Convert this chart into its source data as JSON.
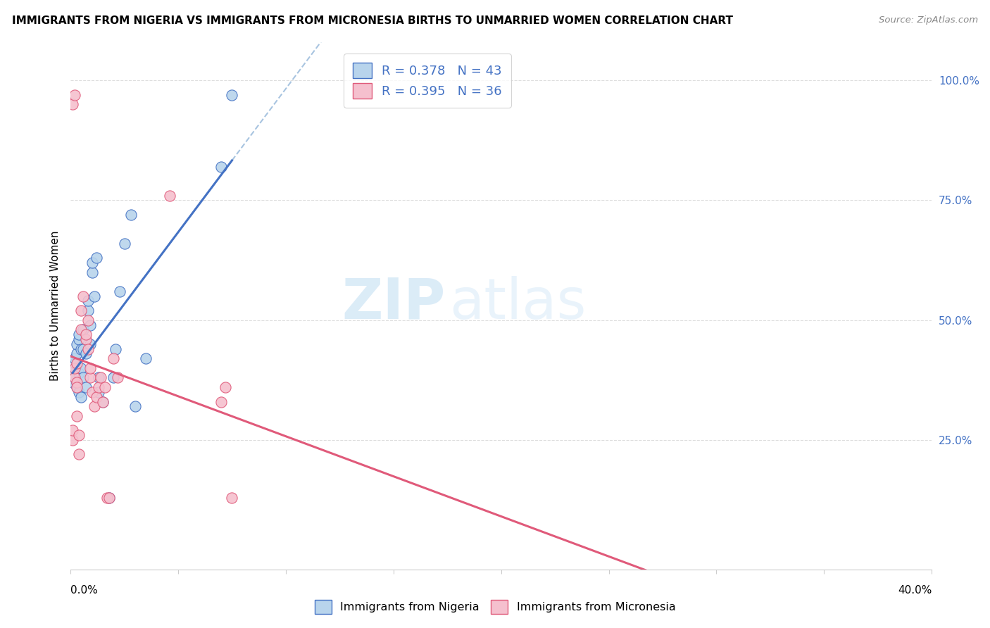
{
  "title": "IMMIGRANTS FROM NIGERIA VS IMMIGRANTS FROM MICRONESIA BIRTHS TO UNMARRIED WOMEN CORRELATION CHART",
  "source": "Source: ZipAtlas.com",
  "ylabel": "Births to Unmarried Women",
  "ytick_values": [
    0.25,
    0.5,
    0.75,
    1.0
  ],
  "xlim": [
    0.0,
    0.4
  ],
  "ylim": [
    -0.02,
    1.08
  ],
  "nigeria_R": 0.378,
  "nigeria_N": 43,
  "micronesia_R": 0.395,
  "micronesia_N": 36,
  "legend_label_1": "Immigrants from Nigeria",
  "legend_label_2": "Immigrants from Micronesia",
  "blue_fill": "#b8d4ec",
  "pink_fill": "#f5c0ce",
  "blue_line_color": "#4472c4",
  "pink_line_color": "#e05a7a",
  "blue_dashed_color": "#a8c4e0",
  "nigeria_x": [
    0.001,
    0.001,
    0.002,
    0.002,
    0.002,
    0.002,
    0.003,
    0.003,
    0.003,
    0.003,
    0.004,
    0.004,
    0.004,
    0.004,
    0.005,
    0.005,
    0.005,
    0.006,
    0.006,
    0.006,
    0.007,
    0.007,
    0.008,
    0.008,
    0.009,
    0.009,
    0.01,
    0.01,
    0.011,
    0.012,
    0.013,
    0.013,
    0.015,
    0.018,
    0.02,
    0.021,
    0.023,
    0.025,
    0.028,
    0.03,
    0.035,
    0.07,
    0.075
  ],
  "nigeria_y": [
    0.37,
    0.39,
    0.38,
    0.4,
    0.41,
    0.42,
    0.36,
    0.37,
    0.43,
    0.45,
    0.35,
    0.39,
    0.46,
    0.47,
    0.34,
    0.4,
    0.44,
    0.38,
    0.44,
    0.48,
    0.36,
    0.43,
    0.52,
    0.54,
    0.45,
    0.49,
    0.6,
    0.62,
    0.55,
    0.63,
    0.35,
    0.38,
    0.33,
    0.13,
    0.38,
    0.44,
    0.56,
    0.66,
    0.72,
    0.32,
    0.42,
    0.82,
    0.97
  ],
  "micronesia_x": [
    0.001,
    0.001,
    0.001,
    0.002,
    0.002,
    0.002,
    0.003,
    0.003,
    0.003,
    0.003,
    0.004,
    0.004,
    0.005,
    0.005,
    0.006,
    0.007,
    0.007,
    0.008,
    0.008,
    0.009,
    0.009,
    0.01,
    0.011,
    0.012,
    0.013,
    0.014,
    0.015,
    0.016,
    0.017,
    0.018,
    0.02,
    0.022,
    0.046,
    0.07,
    0.072,
    0.075
  ],
  "micronesia_y": [
    0.25,
    0.27,
    0.95,
    0.38,
    0.4,
    0.97,
    0.37,
    0.41,
    0.36,
    0.3,
    0.22,
    0.26,
    0.48,
    0.52,
    0.55,
    0.46,
    0.47,
    0.5,
    0.44,
    0.38,
    0.4,
    0.35,
    0.32,
    0.34,
    0.36,
    0.38,
    0.33,
    0.36,
    0.13,
    0.13,
    0.42,
    0.38,
    0.76,
    0.33,
    0.36,
    0.13
  ],
  "watermark_zip": "ZIP",
  "watermark_atlas": "atlas",
  "grid_color": "#dddddd",
  "xtick_minor_count": 9,
  "marker_size": 120
}
